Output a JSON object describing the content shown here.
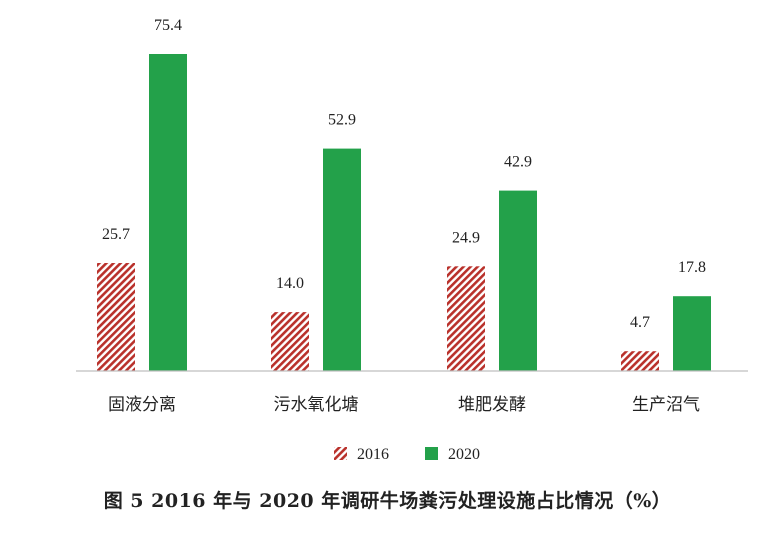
{
  "chart_data": {
    "type": "bar",
    "title": "图 5  2016 年与 2020 年调研牛场粪污处理设施占比情况（%）",
    "categories": [
      "固液分离",
      "污水氧化塘",
      "堆肥发酵",
      "生产沼气"
    ],
    "series": [
      {
        "name": "2016",
        "values": [
          25.7,
          14.0,
          24.9,
          4.7
        ],
        "color": "#b9312b",
        "pattern": "diagonal-hatch"
      },
      {
        "name": "2020",
        "values": [
          75.4,
          52.9,
          42.9,
          17.8
        ],
        "color": "#23a14a",
        "pattern": "solid"
      }
    ],
    "value_labels": [
      [
        "25.7",
        "14.0",
        "24.9",
        "4.7"
      ],
      [
        "75.4",
        "52.9",
        "42.9",
        "17.8"
      ]
    ],
    "ylim": [
      0,
      75.4
    ],
    "grid": false,
    "legend_position": "bottom",
    "axis_color": "#bfbfbf"
  }
}
